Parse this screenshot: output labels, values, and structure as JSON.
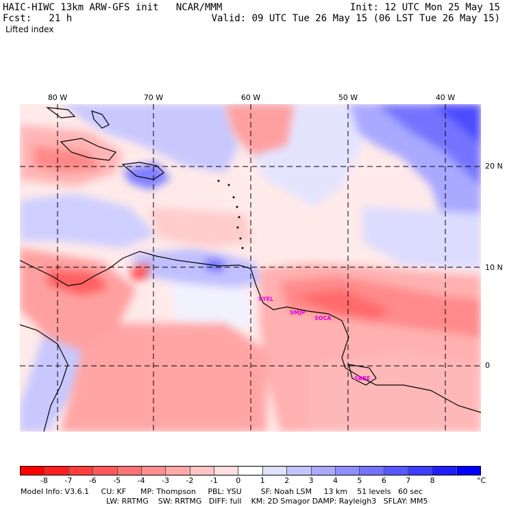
{
  "header": {
    "left_line1": "HAIC-HIWC 13km ARW-GFS init   NCAR/MMM",
    "left_line2": "Fcst:   21 h",
    "right_line1": "Init: 12 UTC Mon 25 May 15",
    "right_line2": "Valid: 09 UTC Tue 26 May 15 (06 LST Tue 26 May 15)",
    "field_name": "Lifted index"
  },
  "axes": {
    "lon_labels": [
      "80 W",
      "70 W",
      "60 W",
      "50 W",
      "40 W"
    ],
    "lat_labels": [
      "20 N",
      "10 N",
      "0"
    ]
  },
  "stations": [
    "SYEL",
    "SMJP",
    "SOCA",
    "SBBE"
  ],
  "colorbar": {
    "unit": "°C",
    "ticks": [
      "-8",
      "-7",
      "-6",
      "-5",
      "-4",
      "-3",
      "-2",
      "-1",
      "0",
      "1",
      "2",
      "3",
      "4",
      "5",
      "6",
      "7",
      "8"
    ],
    "colors": [
      "#ff0000",
      "#ff1f1f",
      "#ff3d3d",
      "#ff5858",
      "#ff7373",
      "#ff8e8e",
      "#ffa9a9",
      "#ffc4c4",
      "#ffe0e0",
      "#ffffff",
      "#e0e0ff",
      "#c4c4ff",
      "#a9a9ff",
      "#8e8eff",
      "#7373ff",
      "#5858ff",
      "#3d3dff",
      "#1f1fff",
      "#0000ff"
    ]
  },
  "model_info": {
    "line1": "Model Info: V3.6.1     CU: KF      MP: Thompson     PBL: YSU        SF: Noah LSM     13 km    51 levels   60 sec",
    "line2": "LW: RRTMG    SW: RRTMG   DIFF: full    KM: 2D Smagor DAMP: Rayleigh3   SFLAY: MM5"
  }
}
